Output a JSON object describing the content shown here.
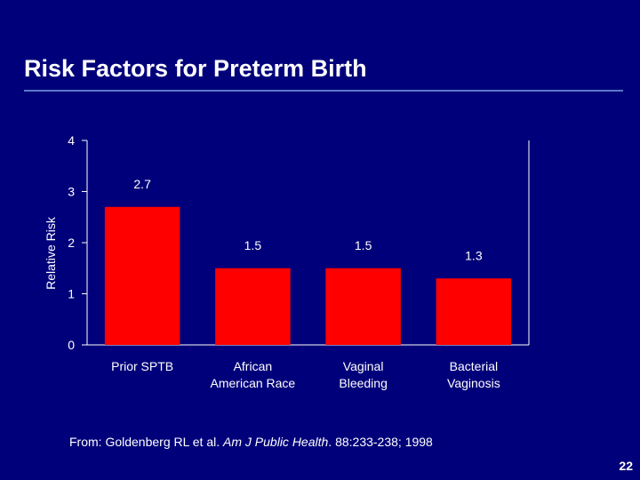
{
  "slide": {
    "title": "Risk Factors for Preterm Birth",
    "page_number": "22",
    "background_color": "#00007a",
    "rule_color": "#5a78c8"
  },
  "source": {
    "prefix": "From: Goldenberg RL et al. ",
    "journal": "Am J Public Health",
    "suffix": ". 88:233-238; 1998"
  },
  "chart_data": {
    "type": "bar",
    "title": "",
    "categories": [
      [
        "Prior SPTB"
      ],
      [
        "African",
        "American Race"
      ],
      [
        "Vaginal",
        "Bleeding"
      ],
      [
        "Bacterial",
        "Vaginosis"
      ]
    ],
    "values": [
      2.7,
      1.5,
      1.5,
      1.3
    ],
    "data_labels": [
      "2.7",
      "1.5",
      "1.5",
      "1.3"
    ],
    "xlabel": "",
    "ylabel": "Relative Risk",
    "ylim": [
      0,
      4
    ],
    "yticks": [
      0,
      1,
      2,
      3,
      4
    ],
    "grid": false,
    "legend": "none",
    "bar_color": "#ff0000",
    "axis_color": "#ffffff"
  }
}
